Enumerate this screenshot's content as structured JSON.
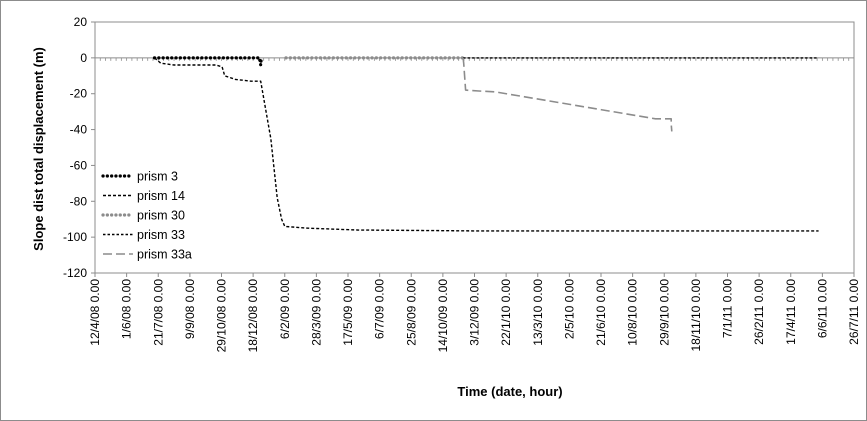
{
  "chart_data": {
    "type": "line",
    "title": "",
    "xlabel": "Time (date, hour)",
    "ylabel": "Slope dist total displacement (m)",
    "ylim": [
      -120,
      20
    ],
    "yticks": [
      20,
      0,
      -20,
      -40,
      -60,
      -80,
      -100,
      -120
    ],
    "xlim": [
      "2008-04-12",
      "2011-07-26"
    ],
    "xtick_labels": [
      "12/4/08 0.00",
      "1/6/08 0.00",
      "21/7/08 0.00",
      "9/9/08 0.00",
      "29/10/08 0.00",
      "18/12/08 0.00",
      "6/2/09 0.00",
      "28/3/09 0.00",
      "17/5/09 0.00",
      "6/7/09 0.00",
      "25/8/09 0.00",
      "14/10/09 0.00",
      "3/12/09 0.00",
      "22/1/10 0.00",
      "13/3/10 0.00",
      "2/5/10 0.00",
      "21/6/10 0.00",
      "10/8/10 0.00",
      "29/9/10 0.00",
      "18/11/10 0.00",
      "7/1/11 0.00",
      "26/2/11 0.00",
      "17/4/11 0.00",
      "6/6/11 0.00",
      "26/7/11 0.00"
    ],
    "legend_position": "bottom-left",
    "grid": false,
    "series": [
      {
        "name": "prism 3",
        "color": "#000000",
        "style": "dotted-thick",
        "points": [
          [
            "2008-07-15",
            0
          ],
          [
            "2008-09-20",
            0
          ],
          [
            "2008-10-30",
            0
          ],
          [
            "2008-12-05",
            0
          ],
          [
            "2008-12-28",
            0
          ],
          [
            "2008-12-29",
            -2
          ],
          [
            "2008-12-30",
            -4
          ],
          [
            "2008-12-31",
            0
          ]
        ]
      },
      {
        "name": "prism 14",
        "color": "#000000",
        "style": "dashed",
        "points": [
          [
            "2008-07-15",
            0
          ],
          [
            "2008-07-25",
            -3
          ],
          [
            "2008-08-15",
            -4
          ],
          [
            "2008-10-20",
            -4
          ],
          [
            "2008-10-30",
            -5
          ],
          [
            "2008-11-03",
            -10
          ],
          [
            "2008-11-20",
            -12
          ],
          [
            "2008-12-15",
            -13
          ],
          [
            "2008-12-30",
            -13
          ],
          [
            "2009-01-15",
            -45
          ],
          [
            "2009-01-25",
            -78
          ],
          [
            "2009-02-01",
            -90
          ],
          [
            "2009-02-06",
            -94
          ],
          [
            "2009-03-15",
            -95
          ],
          [
            "2009-06-01",
            -96
          ],
          [
            "2009-12-01",
            -96.5
          ],
          [
            "2011-05-31",
            -96.5
          ]
        ]
      },
      {
        "name": "prism 30",
        "color": "#8c8c8c",
        "style": "dotted-thick",
        "points": [
          [
            "2009-02-08",
            0
          ],
          [
            "2009-05-01",
            0
          ],
          [
            "2009-09-01",
            0
          ],
          [
            "2009-11-15",
            0
          ]
        ]
      },
      {
        "name": "prism 33",
        "color": "#000000",
        "style": "dash-small",
        "points": [
          [
            "2009-11-15",
            0
          ],
          [
            "2010-03-01",
            0
          ],
          [
            "2010-07-01",
            0
          ],
          [
            "2010-11-01",
            0
          ],
          [
            "2011-02-01",
            0
          ],
          [
            "2011-05-31",
            0
          ]
        ]
      },
      {
        "name": "prism 33a",
        "color": "#8c8c8c",
        "style": "long-dash",
        "points": [
          [
            "2009-11-15",
            0
          ],
          [
            "2009-11-16",
            -3
          ],
          [
            "2009-11-19",
            -18
          ],
          [
            "2009-12-10",
            -18.5
          ],
          [
            "2010-01-05",
            -19
          ],
          [
            "2010-09-15",
            -34
          ],
          [
            "2010-10-10",
            -34
          ],
          [
            "2010-10-10",
            -37
          ],
          [
            "2010-10-11",
            -41
          ]
        ]
      }
    ]
  }
}
